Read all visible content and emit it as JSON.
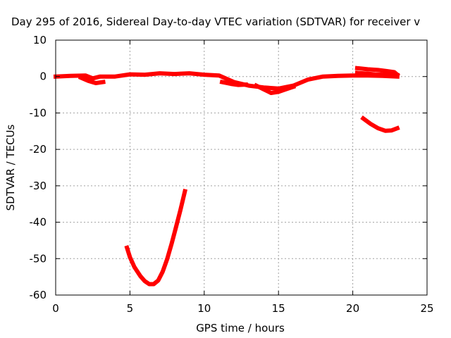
{
  "chart_data": {
    "type": "scatter",
    "title": "Day 295 of 2016, Sidereal Day-to-day VTEC variation (SDTVAR) for receiver v",
    "xlabel": "GPS time / hours",
    "ylabel": "SDTVAR / TECUs",
    "xlim": [
      0,
      25
    ],
    "ylim": [
      -60,
      10
    ],
    "xticks": [
      0,
      5,
      10,
      15,
      20,
      25
    ],
    "yticks": [
      -60,
      -50,
      -40,
      -30,
      -20,
      -10,
      0,
      10
    ],
    "grid": true,
    "colors": {
      "series": "#ff0000",
      "grid": "#a0a0a0",
      "axis": "#000000"
    },
    "series": [
      {
        "segments": [
          [
            [
              0,
              0
            ],
            [
              1,
              0.2
            ],
            [
              2,
              0.3
            ],
            [
              2.5,
              -0.5
            ],
            [
              3,
              0
            ],
            [
              4,
              0
            ],
            [
              5,
              0.6
            ],
            [
              6,
              0.5
            ],
            [
              7,
              0.9
            ],
            [
              8,
              0.7
            ],
            [
              9,
              0.9
            ],
            [
              10,
              0.5
            ],
            [
              11,
              0.3
            ],
            [
              12,
              -1.5
            ],
            [
              13,
              -2.5
            ],
            [
              14,
              -3
            ],
            [
              15,
              -3.3
            ],
            [
              16,
              -2.5
            ],
            [
              17,
              -0.8
            ],
            [
              18,
              0
            ],
            [
              19,
              0.2
            ],
            [
              20,
              0.3
            ],
            [
              21,
              0.3
            ],
            [
              22,
              0.2
            ],
            [
              23,
              0
            ]
          ],
          [
            [
              1.7,
              -0.3
            ],
            [
              2.2,
              -1.2
            ],
            [
              2.7,
              -1.8
            ],
            [
              3.2,
              -1.5
            ]
          ],
          [
            [
              11.2,
              -1.5
            ],
            [
              11.8,
              -2
            ],
            [
              12.3,
              -2.3
            ],
            [
              12.8,
              -2.2
            ]
          ],
          [
            [
              13.5,
              -2.5
            ],
            [
              14,
              -3.5
            ],
            [
              14.5,
              -4.5
            ],
            [
              15,
              -4.2
            ],
            [
              15.5,
              -3.5
            ],
            [
              16,
              -2.8
            ]
          ],
          [
            [
              20.3,
              2.3
            ],
            [
              21,
              2
            ],
            [
              21.7,
              1.8
            ],
            [
              22.3,
              1.5
            ],
            [
              22.8,
              1.2
            ],
            [
              23,
              0.5
            ]
          ],
          [
            [
              20.3,
              1
            ],
            [
              21,
              0.8
            ],
            [
              21.5,
              0.6
            ],
            [
              22,
              0.5
            ],
            [
              22.5,
              0.7
            ],
            [
              23,
              0.4
            ]
          ],
          [
            [
              20.7,
              -11.5
            ],
            [
              21.2,
              -13
            ],
            [
              21.7,
              -14.2
            ],
            [
              22.2,
              -14.9
            ],
            [
              22.6,
              -14.8
            ],
            [
              23,
              -14.2
            ]
          ],
          [
            [
              4.8,
              -47
            ],
            [
              5,
              -49.6
            ],
            [
              5.3,
              -52.3
            ],
            [
              5.7,
              -54.8
            ],
            [
              6,
              -56.2
            ],
            [
              6.3,
              -57
            ],
            [
              6.6,
              -57
            ],
            [
              6.9,
              -56
            ],
            [
              7.2,
              -53.6
            ],
            [
              7.5,
              -50.2
            ],
            [
              7.8,
              -46
            ],
            [
              8.1,
              -41.4
            ],
            [
              8.4,
              -36.6
            ],
            [
              8.7,
              -31.5
            ]
          ]
        ]
      }
    ]
  }
}
